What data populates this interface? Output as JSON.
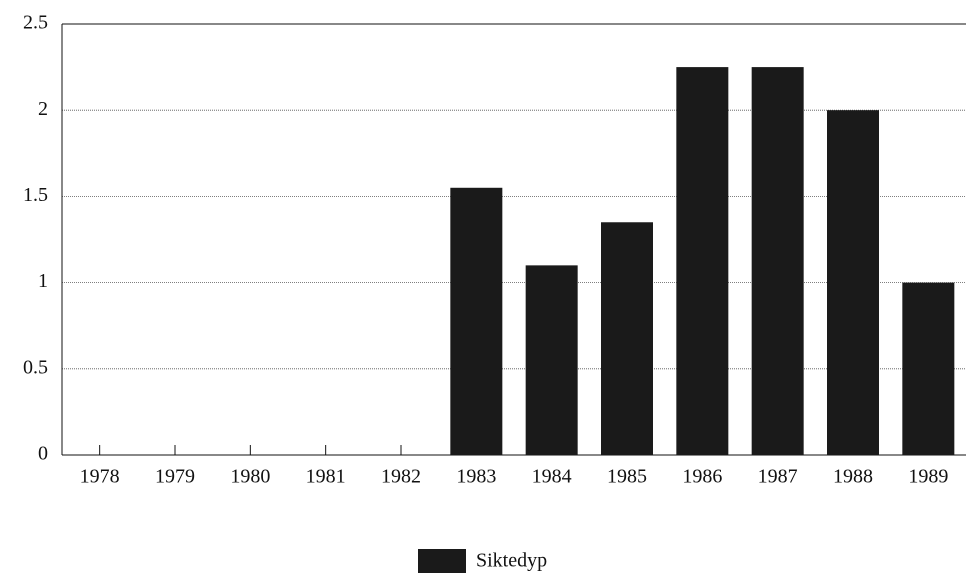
{
  "chart_data": {
    "type": "bar",
    "categories": [
      "1978",
      "1979",
      "1980",
      "1981",
      "1982",
      "1983",
      "1984",
      "1985",
      "1986",
      "1987",
      "1988",
      "1989"
    ],
    "series": [
      {
        "name": "Siktedyp",
        "color": "#1a1a1a",
        "values": [
          null,
          null,
          null,
          null,
          null,
          1.55,
          1.1,
          1.35,
          2.25,
          2.25,
          2,
          1
        ]
      }
    ],
    "ylim": [
      0,
      2.5
    ],
    "yticks": [
      0,
      0.5,
      1,
      1.5,
      2,
      2.5
    ],
    "grid": true,
    "legend": "bottom"
  }
}
